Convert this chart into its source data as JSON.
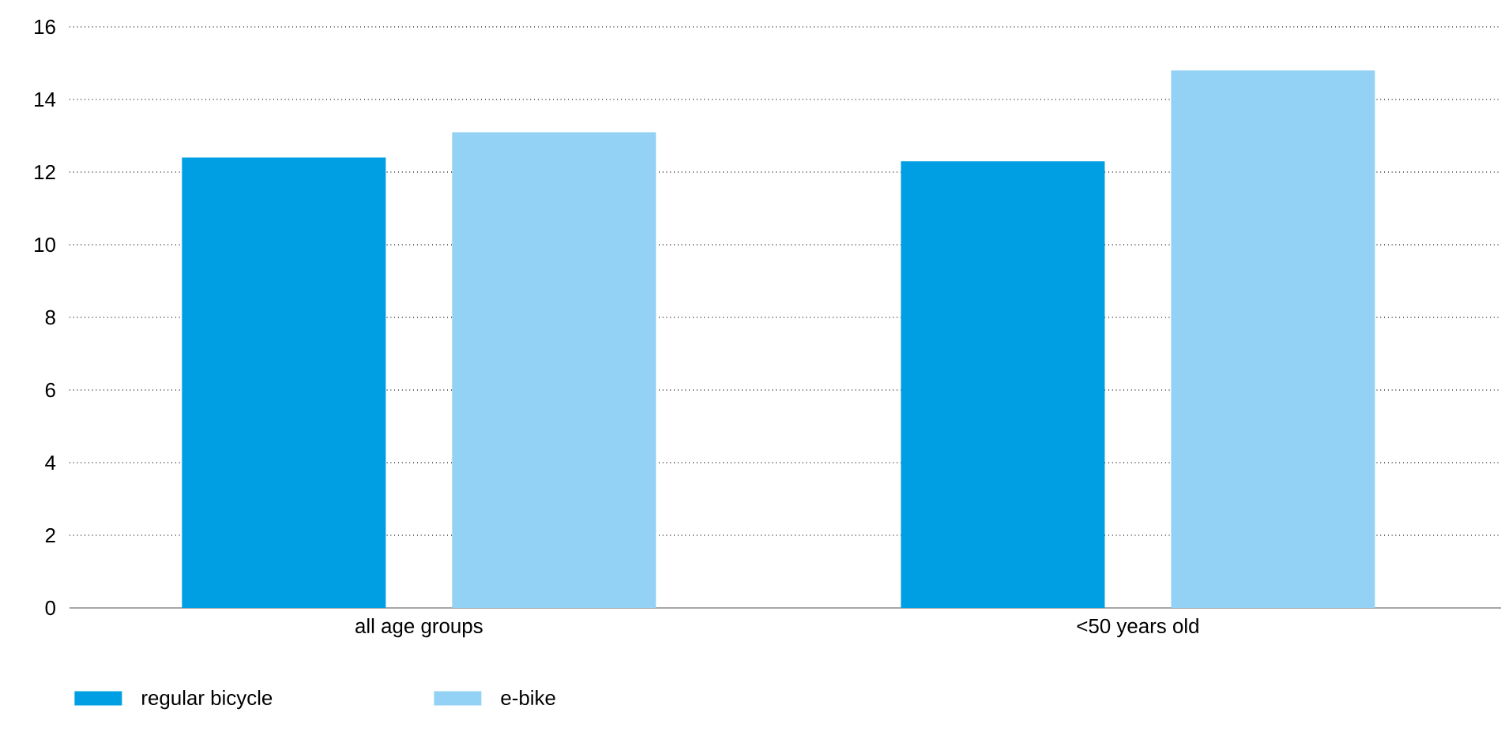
{
  "chart_data": {
    "type": "bar",
    "categories": [
      "all age groups",
      "<50 years old"
    ],
    "series": [
      {
        "name": "regular bicycle",
        "color": "#009fe3",
        "values": [
          12.4,
          12.3
        ]
      },
      {
        "name": "e-bike",
        "color": "#93d2f4",
        "values": [
          13.1,
          14.8
        ]
      }
    ],
    "ylim": [
      0,
      16
    ],
    "yticks": [
      0,
      2,
      4,
      6,
      8,
      10,
      12,
      14,
      16
    ],
    "grid": "y",
    "legend": "bottom"
  }
}
